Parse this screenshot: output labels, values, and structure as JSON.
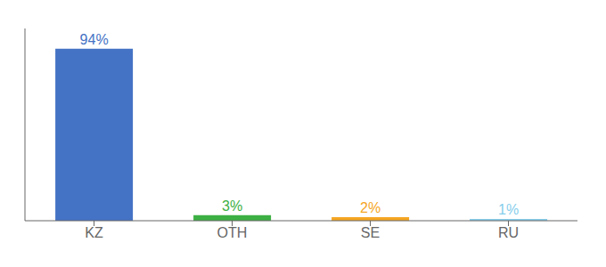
{
  "chart_data": {
    "type": "bar",
    "categories": [
      "KZ",
      "OTH",
      "SE",
      "RU"
    ],
    "values": [
      94,
      3,
      2,
      1
    ],
    "value_labels": [
      "94%",
      "3%",
      "2%",
      "1%"
    ],
    "colors": [
      "#4472c4",
      "#3cb043",
      "#f5a623",
      "#87ceeb"
    ],
    "ylim": [
      0,
      105
    ],
    "grid": false,
    "data_labels": true,
    "tick_labels": "x"
  }
}
